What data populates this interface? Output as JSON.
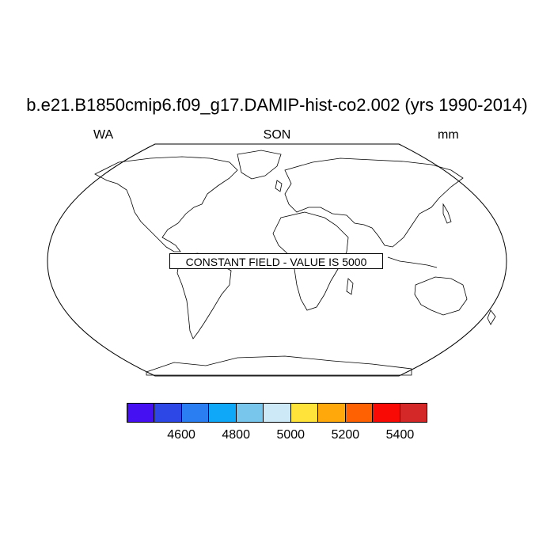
{
  "title": "b.e21.B1850cmip6.f09_g17.DAMIP-hist-co2.002 (yrs 1990-2014)",
  "left_label": "WA",
  "center_label": "SON",
  "right_label": "mm",
  "constant_field_message": "CONSTANT FIELD - VALUE IS 5000",
  "colorbar": {
    "colors": [
      "#4510f2",
      "#2c47e6",
      "#2b7ef1",
      "#0fa8f8",
      "#78c6ec",
      "#cde8f6",
      "#ffe23a",
      "#fea80b",
      "#fe6102",
      "#fa0a04",
      "#d42828"
    ],
    "labels": [
      "4600",
      "4800",
      "5000",
      "5200",
      "5400"
    ]
  }
}
